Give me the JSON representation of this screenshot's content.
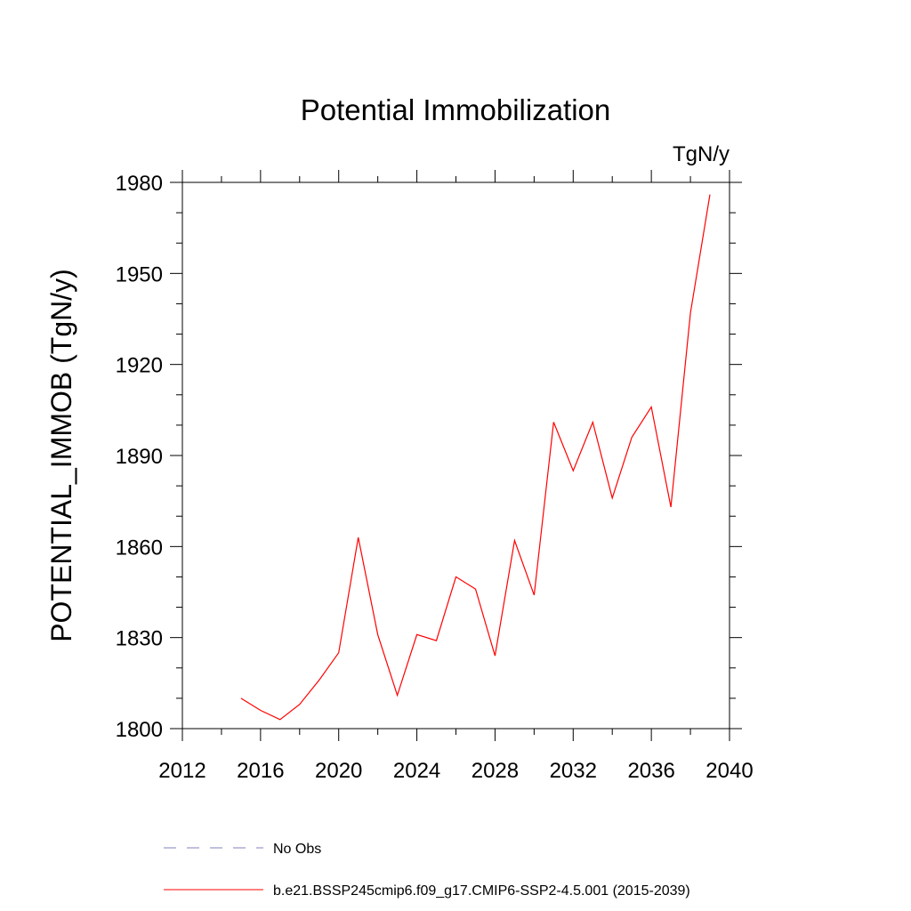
{
  "chart_data": {
    "type": "line",
    "title": "Potential Immobilization",
    "units": "TgN/y",
    "ylabel": "POTENTIAL_IMMOB  (TgN/y)",
    "xlabel": "",
    "xlim": [
      2012,
      2040
    ],
    "ylim": [
      1800,
      1980
    ],
    "xticks": [
      2012,
      2016,
      2020,
      2024,
      2028,
      2032,
      2036,
      2040
    ],
    "yticks": [
      1800,
      1830,
      1860,
      1890,
      1920,
      1950,
      1980
    ],
    "grid": false,
    "legend_position": "bottom",
    "series": [
      {
        "name": "b.e21.BSSP245cmip6.f09_g17.CMIP6-SSP2-4.5.001 (2015-2039)",
        "color": "#ff0000",
        "style": "solid",
        "x": [
          2015,
          2016,
          2017,
          2018,
          2019,
          2020,
          2021,
          2022,
          2023,
          2024,
          2025,
          2026,
          2027,
          2028,
          2029,
          2030,
          2031,
          2032,
          2033,
          2034,
          2035,
          2036,
          2037,
          2038,
          2039
        ],
        "values": [
          1810,
          1806,
          1803,
          1808,
          1816,
          1825,
          1863,
          1831,
          1811,
          1831,
          1829,
          1850,
          1846,
          1824,
          1862,
          1844,
          1901,
          1885,
          1901,
          1876,
          1896,
          1906,
          1873,
          1937,
          1976
        ]
      }
    ],
    "legend": [
      {
        "label": "No Obs",
        "color": "#8080c0",
        "style": "dashed"
      },
      {
        "label": "b.e21.BSSP245cmip6.f09_g17.CMIP6-SSP2-4.5.001 (2015-2039)",
        "color": "#ff0000",
        "style": "solid"
      }
    ]
  }
}
